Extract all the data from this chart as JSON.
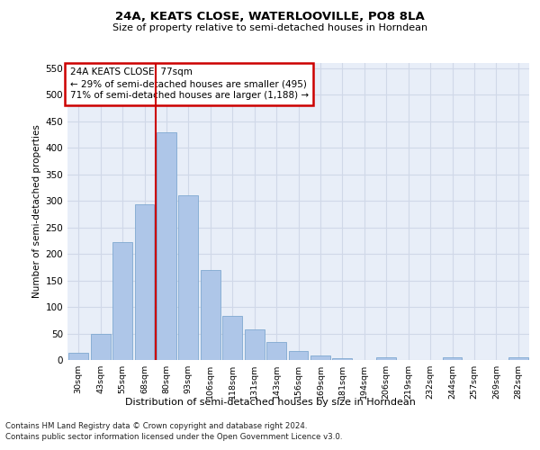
{
  "title": "24A, KEATS CLOSE, WATERLOOVILLE, PO8 8LA",
  "subtitle": "Size of property relative to semi-detached houses in Horndean",
  "xlabel": "Distribution of semi-detached houses by size in Horndean",
  "ylabel": "Number of semi-detached properties",
  "footnote1": "Contains HM Land Registry data © Crown copyright and database right 2024.",
  "footnote2": "Contains public sector information licensed under the Open Government Licence v3.0.",
  "annotation_line1": "24A KEATS CLOSE: 77sqm",
  "annotation_line2": "← 29% of semi-detached houses are smaller (495)",
  "annotation_line3": "71% of semi-detached houses are larger (1,188) →",
  "bar_labels": [
    "30sqm",
    "43sqm",
    "55sqm",
    "68sqm",
    "80sqm",
    "93sqm",
    "106sqm",
    "118sqm",
    "131sqm",
    "143sqm",
    "156sqm",
    "169sqm",
    "181sqm",
    "194sqm",
    "206sqm",
    "219sqm",
    "232sqm",
    "244sqm",
    "257sqm",
    "269sqm",
    "282sqm"
  ],
  "bar_values": [
    13,
    49,
    222,
    294,
    430,
    311,
    170,
    84,
    57,
    34,
    17,
    8,
    4,
    0,
    5,
    0,
    0,
    5,
    0,
    0,
    5
  ],
  "bar_color": "#aec6e8",
  "bar_edge_color": "#7fa8d0",
  "vline_color": "#cc0000",
  "box_color": "#cc0000",
  "grid_color": "#d0d8e8",
  "background_color": "#e8eef8",
  "ylim": [
    0,
    560
  ],
  "yticks": [
    0,
    50,
    100,
    150,
    200,
    250,
    300,
    350,
    400,
    450,
    500,
    550
  ]
}
